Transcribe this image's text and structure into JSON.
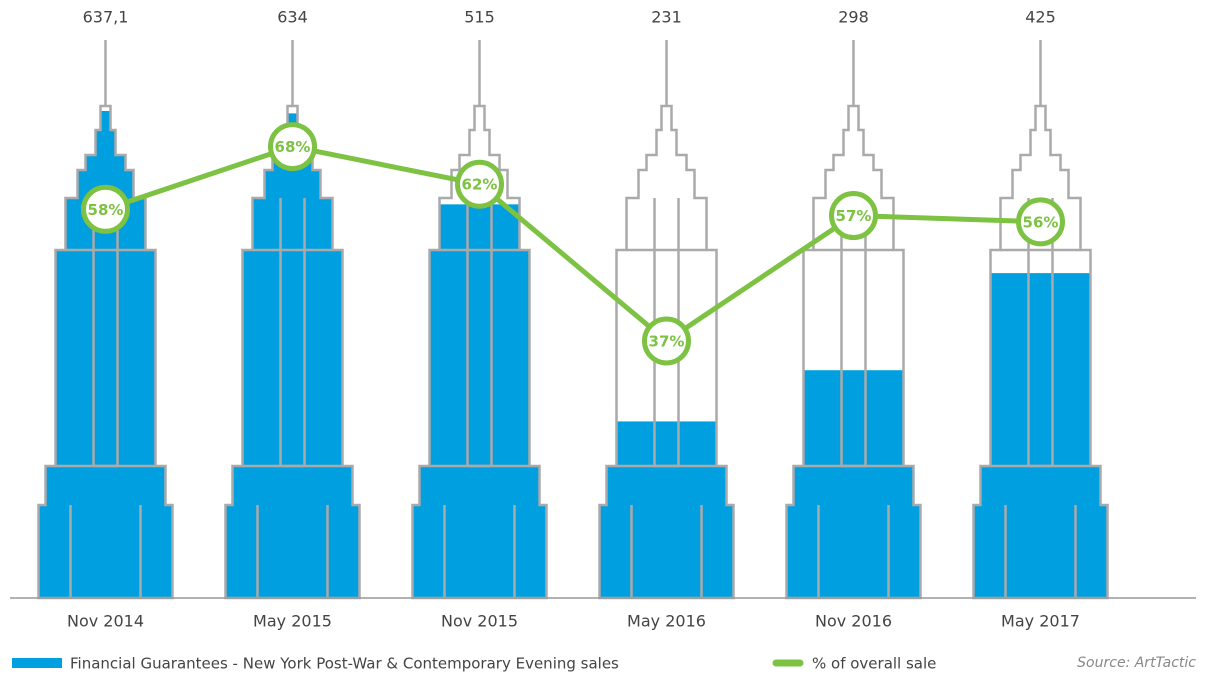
{
  "chart_data": {
    "type": "bar",
    "categories": [
      "Nov 2014",
      "May 2015",
      "Nov 2015",
      "May 2016",
      "Nov 2016",
      "May 2017"
    ],
    "series": [
      {
        "name": "Financial Guarantees - New York Post-War & Contemporary Evening sales",
        "color": "#009fdf",
        "values": [
          637.1,
          634,
          515,
          231,
          298,
          425
        ],
        "value_labels": [
          "637,1",
          "634",
          "515",
          "231",
          "298",
          "425"
        ]
      },
      {
        "name": "% of overall sale",
        "type": "line",
        "axis": "y2",
        "color": "#7dc242",
        "values": [
          58,
          68,
          62,
          37,
          57,
          56
        ],
        "value_labels": [
          "58%",
          "68%",
          "62%",
          "37%",
          "57%",
          "56%"
        ]
      }
    ],
    "ylim": [
      0,
      730
    ],
    "y2lim": [
      -4,
      85
    ],
    "outline_color": "#aaaaaa",
    "source": "Source: ArtTactic"
  }
}
